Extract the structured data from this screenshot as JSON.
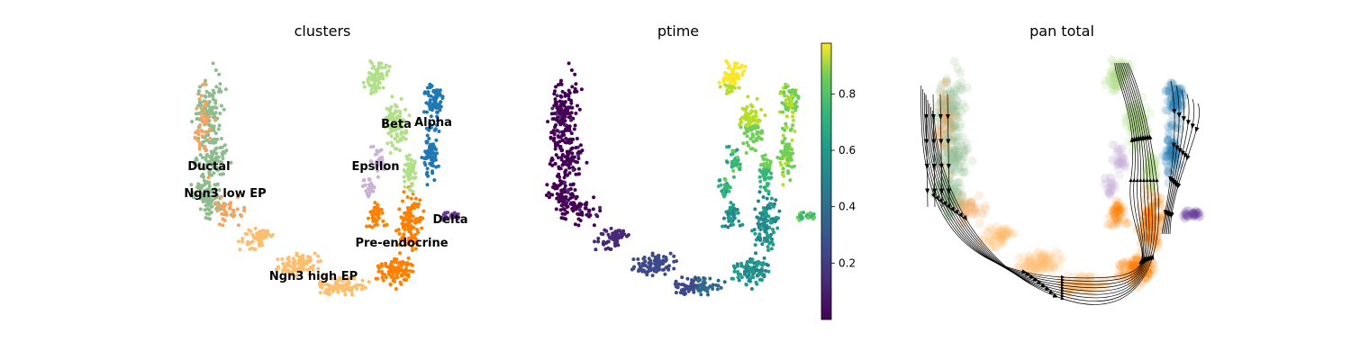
{
  "figure": {
    "panels": [
      {
        "id": "clusters",
        "title": "clusters"
      },
      {
        "id": "ptime",
        "title": "ptime"
      },
      {
        "id": "pan_total",
        "title": "pan total"
      }
    ]
  },
  "chart_data": [
    {
      "type": "scatter",
      "title": "clusters",
      "xlabel": "",
      "ylabel": "",
      "axes_visible": false,
      "clusters": [
        {
          "name": "Ductal",
          "color": "#8fbc8f"
        },
        {
          "name": "Ngn3 low EP",
          "color": "#f4a460"
        },
        {
          "name": "Ngn3 high EP",
          "color": "#fdbf6f"
        },
        {
          "name": "Pre-endocrine",
          "color": "#ff7f00"
        },
        {
          "name": "Beta",
          "color": "#b2df8a"
        },
        {
          "name": "Alpha",
          "color": "#1f78b4"
        },
        {
          "name": "Delta",
          "color": "#6a3d9a"
        },
        {
          "name": "Epsilon",
          "color": "#cab2d6"
        }
      ]
    },
    {
      "type": "scatter",
      "title": "ptime",
      "colormap": "viridis",
      "colorbar": {
        "ticks": [
          0.2,
          0.4,
          0.6,
          0.8
        ],
        "tick_labels": [
          "0.2",
          "0.4",
          "0.6",
          "0.8"
        ],
        "range": [
          0.0,
          0.98
        ]
      },
      "axes_visible": false
    },
    {
      "type": "scatter",
      "title": "pan total",
      "overlay": "velocity streamlines",
      "axes_visible": false
    }
  ]
}
